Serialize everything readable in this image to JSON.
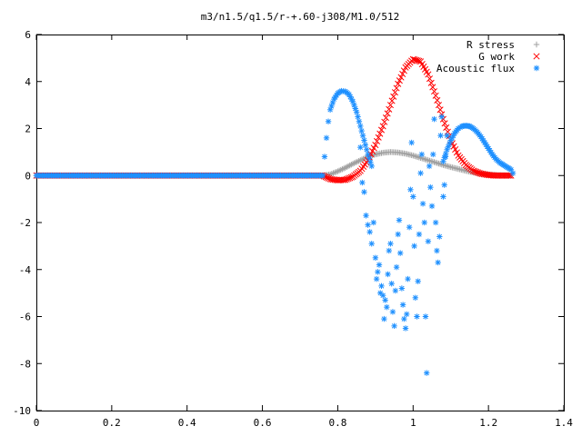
{
  "chart_data": {
    "type": "scatter",
    "title": "m3/n1.5/q1.5/r-+.60-j308/M1.0/512",
    "xlabel": "",
    "ylabel": "",
    "xlim": [
      0,
      1.4
    ],
    "ylim": [
      -10,
      6
    ],
    "x_ticks": [
      0,
      0.2,
      0.4,
      0.6,
      0.8,
      1,
      1.2,
      1.4
    ],
    "x_tick_labels": [
      "0",
      "0.2",
      "0.4",
      "0.6",
      "0.8",
      "1",
      "1.2",
      "1.4"
    ],
    "y_ticks": [
      -10,
      -8,
      -6,
      -4,
      -2,
      0,
      2,
      4,
      6
    ],
    "y_tick_labels": [
      "-10",
      "-8",
      "-6",
      "-4",
      "-2",
      "0",
      "2",
      "4",
      "6"
    ],
    "grid": false,
    "legend_position": "top-right",
    "series": [
      {
        "name": "R stress",
        "marker": "+",
        "color": "#a0a0a0",
        "description": "Gray curve: zero for x < 0.76, rises to a broad hump peaking near 1.0 at x ≈ 0.93, back to ~0 at x ≈ 1.26",
        "points": [
          [
            0.0,
            0
          ],
          [
            0.76,
            0.0
          ],
          [
            0.78,
            0.05
          ],
          [
            0.8,
            0.18
          ],
          [
            0.82,
            0.33
          ],
          [
            0.84,
            0.5
          ],
          [
            0.86,
            0.65
          ],
          [
            0.88,
            0.8
          ],
          [
            0.9,
            0.9
          ],
          [
            0.92,
            0.97
          ],
          [
            0.94,
            1.0
          ],
          [
            0.96,
            0.98
          ],
          [
            0.98,
            0.93
          ],
          [
            1.0,
            0.85
          ],
          [
            1.02,
            0.75
          ],
          [
            1.04,
            0.65
          ],
          [
            1.06,
            0.55
          ],
          [
            1.08,
            0.45
          ],
          [
            1.1,
            0.36
          ],
          [
            1.12,
            0.28
          ],
          [
            1.14,
            0.2
          ],
          [
            1.16,
            0.13
          ],
          [
            1.18,
            0.08
          ],
          [
            1.2,
            0.04
          ],
          [
            1.22,
            0.02
          ],
          [
            1.24,
            0.01
          ],
          [
            1.26,
            0.0
          ]
        ]
      },
      {
        "name": "G work",
        "marker": "x",
        "color": "#ff0000",
        "description": "Red curve: zero for x < 0.76, slight negative dip near x = 0.8, rises to peak ~4.95 at x ≈ 0.99, falls back to ~0 at x ≈ 1.26",
        "points": [
          [
            0.0,
            0
          ],
          [
            0.76,
            0.0
          ],
          [
            0.78,
            -0.15
          ],
          [
            0.8,
            -0.2
          ],
          [
            0.82,
            -0.18
          ],
          [
            0.84,
            -0.05
          ],
          [
            0.86,
            0.2
          ],
          [
            0.88,
            0.65
          ],
          [
            0.9,
            1.3
          ],
          [
            0.92,
            2.1
          ],
          [
            0.94,
            3.0
          ],
          [
            0.96,
            3.9
          ],
          [
            0.98,
            4.6
          ],
          [
            1.0,
            4.95
          ],
          [
            1.02,
            4.85
          ],
          [
            1.04,
            4.3
          ],
          [
            1.06,
            3.4
          ],
          [
            1.08,
            2.4
          ],
          [
            1.1,
            1.5
          ],
          [
            1.12,
            0.85
          ],
          [
            1.14,
            0.45
          ],
          [
            1.16,
            0.2
          ],
          [
            1.18,
            0.08
          ],
          [
            1.2,
            0.02
          ],
          [
            1.22,
            0.0
          ],
          [
            1.24,
            0.0
          ],
          [
            1.26,
            0.0
          ]
        ]
      },
      {
        "name": "Acoustic flux",
        "marker": "*",
        "color": "#1e90ff",
        "description": "Blue: zero for x < 0.76, hump peaking ~3.6 near x = 0.81, scattered negative values down to about -8.4 between x ≈ 0.85 and 1.05, second hump peaking ~2.1 near x = 1.15",
        "curve_points": [
          [
            0.0,
            0
          ],
          [
            0.76,
            0.0
          ],
          [
            0.765,
            0.8
          ],
          [
            0.77,
            1.6
          ],
          [
            0.775,
            2.3
          ],
          [
            0.78,
            2.8
          ],
          [
            0.79,
            3.25
          ],
          [
            0.8,
            3.5
          ],
          [
            0.81,
            3.6
          ],
          [
            0.82,
            3.58
          ],
          [
            0.83,
            3.45
          ],
          [
            0.84,
            3.15
          ],
          [
            0.85,
            2.7
          ],
          [
            0.86,
            2.1
          ],
          [
            0.87,
            1.5
          ],
          [
            0.88,
            0.9
          ],
          [
            0.89,
            0.4
          ]
        ],
        "curve_points_2": [
          [
            1.08,
            0.6
          ],
          [
            1.09,
            1.1
          ],
          [
            1.1,
            1.5
          ],
          [
            1.11,
            1.8
          ],
          [
            1.12,
            2.0
          ],
          [
            1.13,
            2.1
          ],
          [
            1.14,
            2.12
          ],
          [
            1.15,
            2.1
          ],
          [
            1.16,
            2.0
          ],
          [
            1.17,
            1.85
          ],
          [
            1.18,
            1.65
          ],
          [
            1.19,
            1.4
          ],
          [
            1.2,
            1.15
          ],
          [
            1.21,
            0.9
          ],
          [
            1.22,
            0.7
          ],
          [
            1.23,
            0.55
          ],
          [
            1.24,
            0.45
          ],
          [
            1.25,
            0.35
          ],
          [
            1.26,
            0.25
          ],
          [
            1.265,
            0.1
          ]
        ],
        "scatter_points": [
          [
            0.86,
            1.2
          ],
          [
            0.865,
            -0.3
          ],
          [
            0.87,
            -0.7
          ],
          [
            0.875,
            -1.7
          ],
          [
            0.88,
            -2.1
          ],
          [
            0.885,
            -2.4
          ],
          [
            0.89,
            -2.9
          ],
          [
            0.895,
            -2.0
          ],
          [
            0.9,
            -3.5
          ],
          [
            0.903,
            -4.4
          ],
          [
            0.906,
            -4.1
          ],
          [
            0.91,
            -3.8
          ],
          [
            0.913,
            -5.0
          ],
          [
            0.916,
            -4.7
          ],
          [
            0.92,
            -5.1
          ],
          [
            0.923,
            -6.1
          ],
          [
            0.926,
            -5.3
          ],
          [
            0.93,
            -5.6
          ],
          [
            0.933,
            -4.2
          ],
          [
            0.936,
            -3.2
          ],
          [
            0.94,
            -2.9
          ],
          [
            0.943,
            -4.6
          ],
          [
            0.946,
            -5.8
          ],
          [
            0.95,
            -6.4
          ],
          [
            0.953,
            -4.9
          ],
          [
            0.956,
            -3.9
          ],
          [
            0.96,
            -2.5
          ],
          [
            0.963,
            -1.9
          ],
          [
            0.966,
            -3.3
          ],
          [
            0.97,
            -4.8
          ],
          [
            0.973,
            -5.5
          ],
          [
            0.976,
            -6.1
          ],
          [
            0.98,
            -6.5
          ],
          [
            0.983,
            -5.9
          ],
          [
            0.986,
            -4.4
          ],
          [
            0.99,
            -2.2
          ],
          [
            0.993,
            -0.6
          ],
          [
            0.996,
            1.4
          ],
          [
            1.0,
            -0.9
          ],
          [
            1.003,
            -3.0
          ],
          [
            1.006,
            -5.2
          ],
          [
            1.01,
            -6.0
          ],
          [
            1.013,
            -4.5
          ],
          [
            1.016,
            -2.5
          ],
          [
            1.02,
            0.1
          ],
          [
            1.023,
            0.9
          ],
          [
            1.026,
            -1.2
          ],
          [
            1.03,
            -2.0
          ],
          [
            1.033,
            -6.0
          ],
          [
            1.036,
            -8.4
          ],
          [
            1.04,
            -2.8
          ],
          [
            1.043,
            0.4
          ],
          [
            1.046,
            -0.5
          ],
          [
            1.05,
            -1.3
          ],
          [
            1.053,
            0.9
          ],
          [
            1.056,
            2.4
          ],
          [
            1.06,
            -2.0
          ],
          [
            1.063,
            -3.2
          ],
          [
            1.066,
            -3.7
          ],
          [
            1.07,
            -2.6
          ],
          [
            1.073,
            1.7
          ],
          [
            1.076,
            2.5
          ],
          [
            1.08,
            -0.9
          ],
          [
            1.083,
            -0.4
          ],
          [
            1.086,
            0.8
          ],
          [
            1.09,
            1.7
          ]
        ]
      }
    ]
  }
}
